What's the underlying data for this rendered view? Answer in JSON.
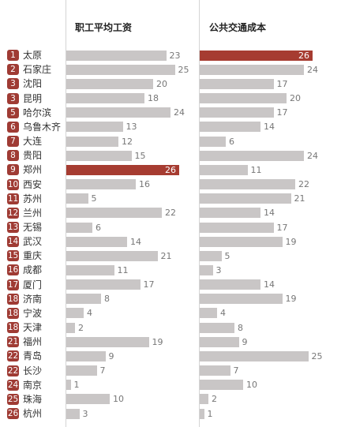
{
  "chart_data": {
    "type": "bar",
    "categories": [
      "太原",
      "石家庄",
      "沈阳",
      "昆明",
      "哈尔滨",
      "乌鲁木齐",
      "大连",
      "贵阳",
      "郑州",
      "西安",
      "苏州",
      "兰州",
      "无锡",
      "武汉",
      "重庆",
      "成都",
      "厦门",
      "济南",
      "宁波",
      "天津",
      "福州",
      "青岛",
      "长沙",
      "南京",
      "珠海",
      "杭州"
    ],
    "ranks": [
      1,
      2,
      3,
      3,
      5,
      6,
      7,
      8,
      9,
      10,
      11,
      12,
      13,
      14,
      15,
      16,
      17,
      18,
      18,
      18,
      21,
      22,
      22,
      24,
      25,
      26
    ],
    "series": [
      {
        "name": "职工平均工资",
        "values": [
          23,
          25,
          20,
          18,
          24,
          13,
          12,
          15,
          26,
          16,
          5,
          22,
          6,
          14,
          21,
          11,
          17,
          8,
          4,
          2,
          19,
          9,
          7,
          1,
          10,
          3
        ],
        "highlight_index": 8
      },
      {
        "name": "公共交通成本",
        "values": [
          26,
          24,
          17,
          20,
          17,
          14,
          6,
          24,
          11,
          22,
          21,
          14,
          17,
          19,
          5,
          3,
          14,
          19,
          4,
          8,
          9,
          25,
          7,
          10,
          2,
          1
        ],
        "highlight_index": 0
      }
    ],
    "xlim": [
      0,
      26
    ],
    "grid": false
  },
  "colors": {
    "bar": "#c9c6c6",
    "highlight": "#a63c31",
    "badge": "#9f3b34",
    "city_text": "#333333",
    "value_label": "#777777",
    "highlight_label": "#ffffff",
    "divider": "#d4d4d4"
  }
}
